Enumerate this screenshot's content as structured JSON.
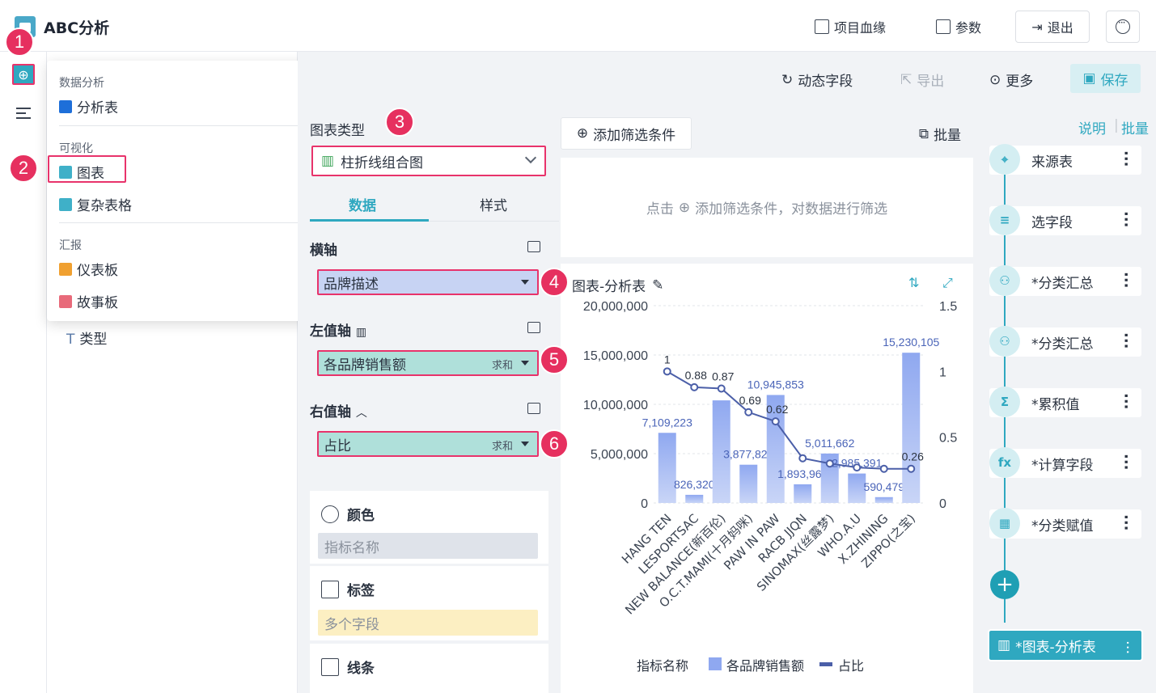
{
  "app": {
    "title": "ABC分析"
  },
  "topbar": {
    "lineage_label": "项目血缘",
    "params_label": "参数",
    "exit_label": "退出"
  },
  "dropdown": {
    "group1": "数据分析",
    "item_analysis": "分析表",
    "group2": "可视化",
    "item_chart": "图表",
    "item_complex_table": "复杂表格",
    "group3": "汇报",
    "item_dashboard": "仪表板",
    "item_story": "故事板"
  },
  "field_list": {
    "type_field": "类型"
  },
  "toolbar": {
    "dynamic_field": "动态字段",
    "export": "导出",
    "more": "更多",
    "save": "保存"
  },
  "config": {
    "chart_type_label": "图表类型",
    "chart_type_value": "柱折线组合图",
    "tab_data": "数据",
    "tab_style": "样式",
    "x_axis_label": "横轴",
    "x_axis_field": "品牌描述",
    "left_axis_label": "左值轴",
    "left_axis_field": "各品牌销售额",
    "left_axis_agg": "求和",
    "right_axis_label": "右值轴",
    "right_axis_field": "占比",
    "right_axis_agg": "求和",
    "color_label": "颜色",
    "color_field": "指标名称",
    "label_label": "标签",
    "label_field": "多个字段",
    "line_label": "线条"
  },
  "badges": [
    "1",
    "2",
    "3",
    "4",
    "5",
    "6"
  ],
  "filter": {
    "add_label": "添加筛选条件",
    "batch_label": "批量",
    "hint_prefix": "点击",
    "hint_text": "添加筛选条件，对数据进行筛选"
  },
  "chart": {
    "title": "图表-分析表",
    "legend_title": "指标名称",
    "left_ticks": [
      "20,000,000",
      "15,000,000",
      "10,000,000",
      "5,000,000",
      "0"
    ],
    "right_ticks": [
      "1.5",
      "1",
      "0.5",
      "0"
    ]
  },
  "chart_data": {
    "type": "bar",
    "categories": [
      "HANG TEN",
      "LESPORTSAC",
      "NEW BALANCE(新百伦)",
      "O.C.T.MAMI(十月妈咪)",
      "PAW IN PAW",
      "RACB JJQN",
      "SINOMAX(丝露梦)",
      "WHO.A.U",
      "X.ZHINING",
      "ZIPPO(之宝)"
    ],
    "series": [
      {
        "name": "各品牌销售额",
        "type": "bar",
        "axis": "left",
        "color": "#8fa8f0",
        "values": [
          7109223,
          826320,
          10400000,
          3877821,
          10945853,
          1893961,
          5011662,
          2985391,
          590479,
          15230105
        ],
        "labels": [
          "7,109,223",
          "826,320",
          "",
          "3,877,821",
          "10,945,853",
          "1,893,961",
          "5,011,662",
          "2,985,391",
          "590,479",
          "15,230,105"
        ]
      },
      {
        "name": "占比",
        "type": "line",
        "axis": "right",
        "color": "#4b5fa8",
        "values": [
          1,
          0.88,
          0.87,
          0.69,
          0.62,
          0.34,
          0.3,
          0.27,
          0.26,
          0.26
        ],
        "labels": [
          "1",
          "0.88",
          "0.87",
          "0.69",
          "0.62",
          "",
          "",
          "",
          "",
          "0.26"
        ]
      }
    ],
    "ylim_left": [
      0,
      20000000
    ],
    "ylim_right": [
      0,
      1.5
    ],
    "legend_position": "bottom",
    "grid": true
  },
  "flow": {
    "link_explain": "说明",
    "link_batch": "批量",
    "nodes": [
      "来源表",
      "选字段",
      "*分类汇总",
      "*分类汇总",
      "*累积值",
      "*计算字段",
      "*分类赋值"
    ],
    "node_icons": [
      "⌖",
      "≡",
      "⚇",
      "⚇",
      "Σ",
      "fx",
      "▦"
    ],
    "final": "*图表-分析表"
  },
  "colors": {
    "accent": "#2fa8c0",
    "highlight": "#e8336b",
    "badge": "#e6305f"
  }
}
